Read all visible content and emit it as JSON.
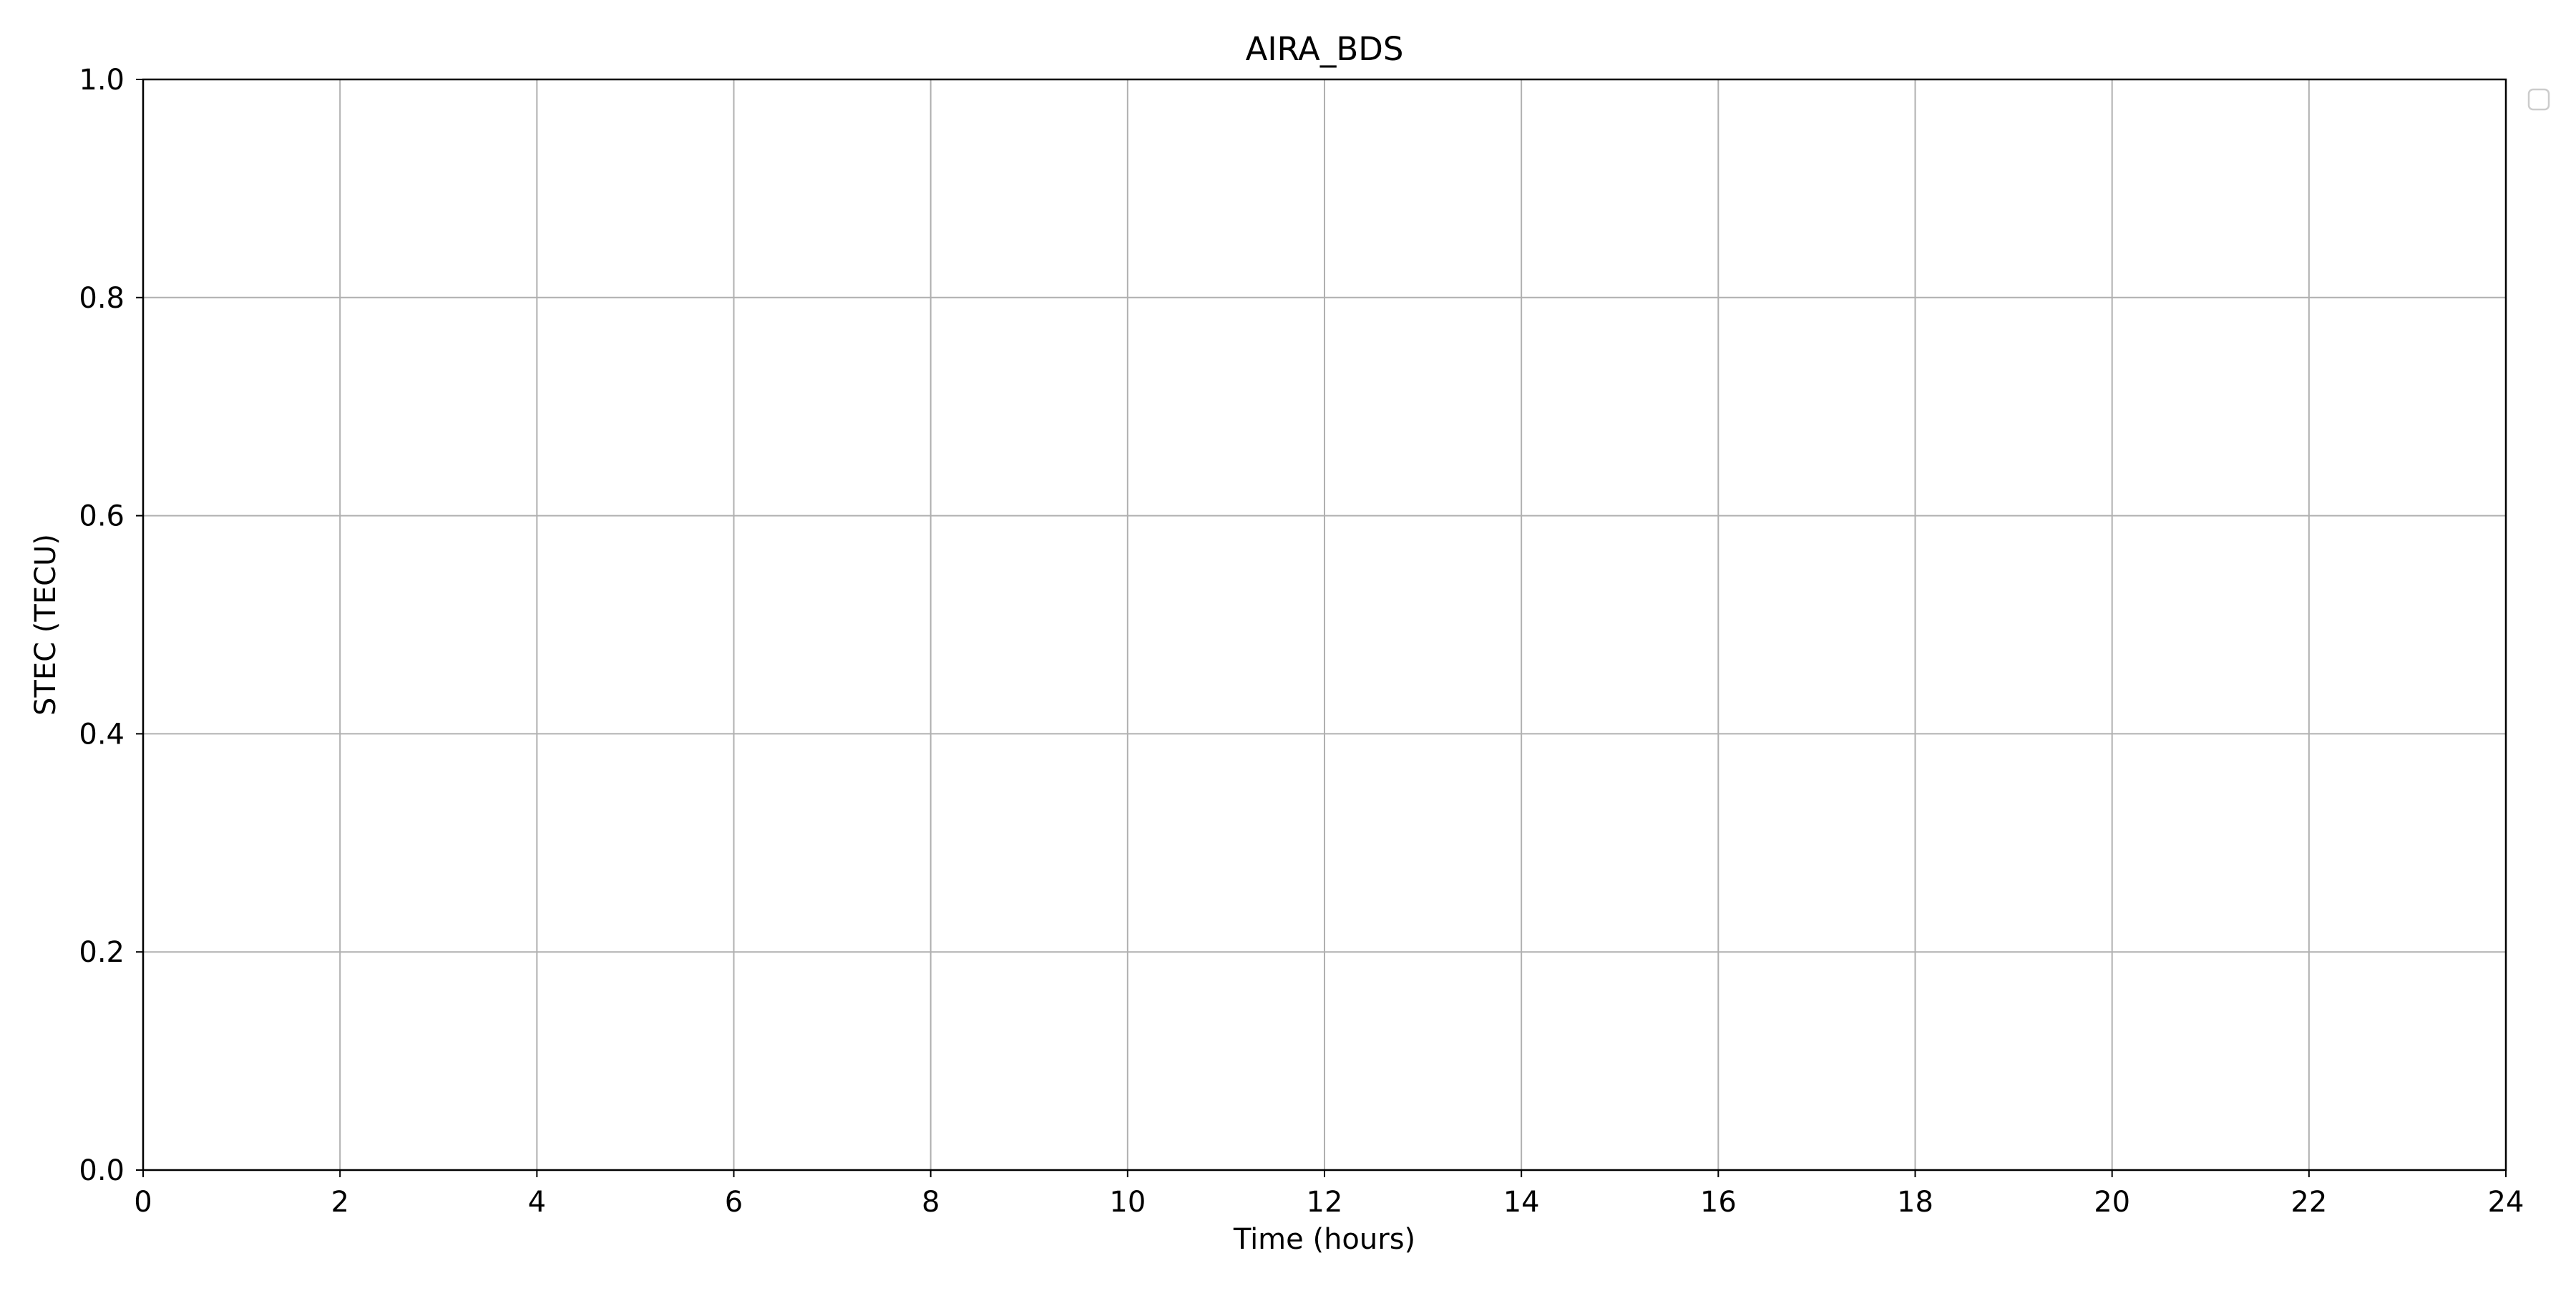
{
  "chart_data": {
    "type": "line",
    "title": "AIRA_BDS",
    "xlabel": "Time (hours)",
    "ylabel": "STEC (TECU)",
    "xlim": [
      0,
      24
    ],
    "ylim": [
      0.0,
      1.0
    ],
    "xticks": [
      "0",
      "2",
      "4",
      "6",
      "8",
      "10",
      "12",
      "14",
      "16",
      "18",
      "20",
      "22",
      "24"
    ],
    "yticks": [
      "0.0",
      "0.2",
      "0.4",
      "0.6",
      "0.8",
      "1.0"
    ],
    "grid": true,
    "legend": "upper-right-outside",
    "series": []
  },
  "colors": {
    "grid": "#b0b0b0",
    "axes": "#000000",
    "background": "#ffffff"
  }
}
